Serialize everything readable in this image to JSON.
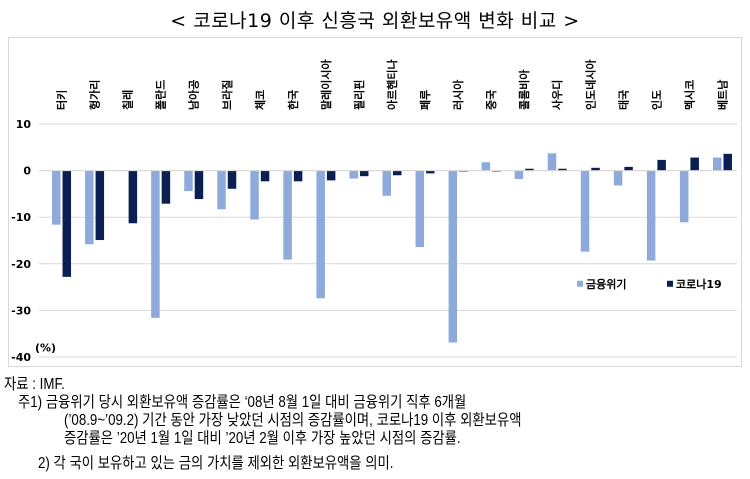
{
  "title": "< 코로나19 이후 신흥국 외환보유액 변화 비교 >",
  "chart_data": {
    "type": "bar",
    "categories": [
      "터키",
      "헝가리",
      "칠레",
      "폴란드",
      "남아공",
      "브라질",
      "체코",
      "한국",
      "말레이시아",
      "필리핀",
      "아르헨티나",
      "페루",
      "러시아",
      "중국",
      "콜롬비아",
      "사우디",
      "인도네시아",
      "태국",
      "인도",
      "멕시코",
      "베트남"
    ],
    "series": [
      {
        "name": "금융위기",
        "color": "#8eaadb",
        "values": [
          -11.6,
          -15.8,
          0.1,
          -31.6,
          -4.4,
          -8.3,
          -10.5,
          -19.1,
          -27.4,
          -1.7,
          -5.4,
          -16.4,
          -36.9,
          1.8,
          -1.8,
          3.7,
          -17.4,
          -3.2,
          -19.3,
          -11.1,
          2.8
        ]
      },
      {
        "name": "코로나19",
        "color": "#0b1f52",
        "values": [
          -22.8,
          -14.9,
          -11.3,
          -7.1,
          -6.1,
          -3.9,
          -2.3,
          -2.3,
          -2.1,
          -1.2,
          -1.0,
          -0.6,
          -0.2,
          -0.2,
          0.4,
          0.4,
          0.6,
          0.8,
          2.3,
          2.8,
          3.6
        ]
      }
    ],
    "ylabel": "(%)",
    "ylim": [
      -40,
      10
    ],
    "yticks": [
      "10",
      "0",
      "-10",
      "-20",
      "-30",
      "-40"
    ],
    "grid": true,
    "legend": "bottom-right"
  },
  "notes": {
    "source": "자료 : IMF.",
    "note1_line1": "주1) 금융위기 당시 외환보유액 증감률은 ‘08년 8월 1일 대비 금융위기 직후 6개월",
    "note1_line2": "(’08.9~’09.2) 기간 동안 가장 낮았던 시점의 증감률이며, 코로나19 이후 외환보유액",
    "note1_line3": "증감률은 ’20년 1월 1일 대비 ’20년 2월 이후 가장 높았던 시점의 증감률.",
    "note2": "2) 각 국이 보유하고 있는 금의 가치를 제외한 외환보유액을 의미."
  }
}
